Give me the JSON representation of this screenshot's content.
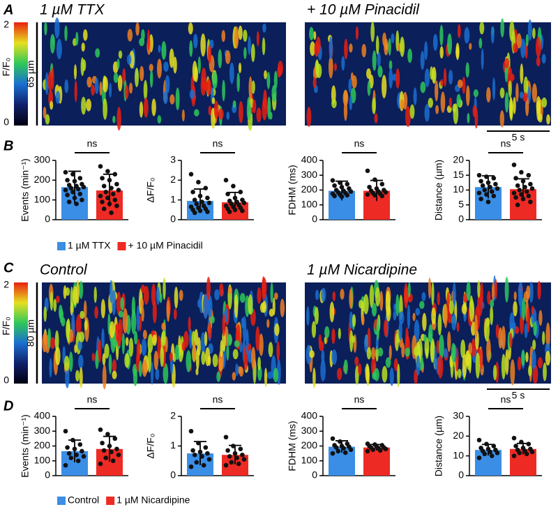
{
  "panel_letters": [
    "A",
    "B",
    "C",
    "D"
  ],
  "kymographs": [
    {
      "titles": [
        "1 µM TTX",
        "+ 10 µM Pinacidil"
      ],
      "scale_space": "65 µm",
      "scale_time": "5 s",
      "colorbar": {
        "label": "F/F₀",
        "ticks": [
          0,
          2
        ]
      }
    },
    {
      "titles": [
        "Control",
        "1 µM Nicardipine"
      ],
      "scale_space": "80 µm",
      "scale_time": "5 s",
      "colorbar": {
        "label": "F/F₀",
        "ticks": [
          0,
          2
        ]
      }
    }
  ],
  "legends": [
    [
      {
        "name": "1 µM TTX",
        "color": "#3a8ee6"
      },
      {
        "name": "+ 10 µM Pinacidil",
        "color": "#ee2a24"
      }
    ],
    [
      {
        "name": "Control",
        "color": "#3a8ee6"
      },
      {
        "name": "1 µM Nicardipine",
        "color": "#ee2a24"
      }
    ]
  ],
  "chart_data": [
    {
      "type": "bar",
      "ylabel": "Events (min⁻¹)",
      "annotation": "ns",
      "colors": [
        "#3a8ee6",
        "#ee2a24"
      ],
      "values": [
        165,
        148
      ],
      "errors": [
        80,
        82
      ],
      "ylim": [
        0,
        300
      ],
      "yticks": [
        0,
        100,
        200,
        300
      ],
      "points": [
        [
          240,
          230,
          210,
          200,
          195,
          180,
          175,
          170,
          165,
          160,
          155,
          150,
          140,
          130,
          125,
          110,
          100,
          90,
          80
        ],
        [
          270,
          245,
          230,
          210,
          200,
          180,
          170,
          160,
          150,
          140,
          130,
          120,
          110,
          100,
          90,
          80,
          70,
          55,
          35
        ]
      ]
    },
    {
      "type": "bar",
      "ylabel": "ΔF/F₀",
      "annotation": "ns",
      "colors": [
        "#3a8ee6",
        "#ee2a24"
      ],
      "values": [
        0.95,
        0.88
      ],
      "errors": [
        0.6,
        0.5
      ],
      "ylim": [
        0,
        3
      ],
      "yticks": [
        0,
        1,
        2,
        3
      ],
      "points": [
        [
          2.3,
          1.9,
          1.6,
          1.4,
          1.2,
          1.1,
          1.0,
          0.9,
          0.85,
          0.8,
          0.7,
          0.65,
          0.6,
          0.55,
          0.5,
          0.45,
          0.4,
          0.35
        ],
        [
          2.0,
          1.7,
          1.4,
          1.3,
          1.1,
          1.0,
          0.95,
          0.9,
          0.85,
          0.8,
          0.75,
          0.7,
          0.65,
          0.6,
          0.55,
          0.5,
          0.45,
          0.4
        ]
      ]
    },
    {
      "type": "bar",
      "ylabel": "FDHM (ms)",
      "annotation": "ns",
      "colors": [
        "#3a8ee6",
        "#ee2a24"
      ],
      "values": [
        195,
        195
      ],
      "errors": [
        65,
        70
      ],
      "ylim": [
        0,
        400
      ],
      "yticks": [
        0,
        100,
        200,
        300,
        400
      ],
      "points": [
        [
          265,
          250,
          240,
          230,
          220,
          210,
          200,
          195,
          190,
          185,
          180,
          175,
          170,
          165,
          160,
          155
        ],
        [
          330,
          270,
          240,
          220,
          210,
          200,
          195,
          190,
          185,
          180,
          175,
          170,
          165,
          160
        ]
      ]
    },
    {
      "type": "bar",
      "ylabel": "Distance (µm)",
      "annotation": "ns",
      "colors": [
        "#3a8ee6",
        "#ee2a24"
      ],
      "values": [
        11,
        10.3
      ],
      "errors": [
        3.8,
        3.5
      ],
      "ylim": [
        0,
        20
      ],
      "yticks": [
        0,
        5,
        10,
        15,
        20
      ],
      "points": [
        [
          15,
          14.5,
          14,
          13,
          12.5,
          12,
          11.5,
          11,
          10.5,
          10,
          9.5,
          9,
          8.5,
          8,
          7,
          6
        ],
        [
          18.5,
          16,
          15,
          14,
          13,
          12,
          11.5,
          11,
          10.5,
          10,
          9.5,
          9,
          8.5,
          8,
          7.5,
          7,
          6,
          5
        ]
      ]
    },
    {
      "type": "bar",
      "ylabel": "Events (min⁻¹)",
      "annotation": "ns",
      "colors": [
        "#3a8ee6",
        "#ee2a24"
      ],
      "values": [
        165,
        180
      ],
      "errors": [
        75,
        85
      ],
      "ylim": [
        0,
        400
      ],
      "yticks": [
        0,
        100,
        200,
        300,
        400
      ],
      "points": [
        [
          300,
          240,
          210,
          190,
          180,
          165,
          150,
          140,
          130,
          120,
          100,
          70
        ],
        [
          310,
          280,
          250,
          220,
          200,
          180,
          170,
          160,
          140,
          120,
          100,
          80
        ]
      ]
    },
    {
      "type": "bar",
      "ylabel": "ΔF/F₀",
      "annotation": "ns",
      "colors": [
        "#3a8ee6",
        "#ee2a24"
      ],
      "values": [
        0.75,
        0.7
      ],
      "errors": [
        0.4,
        0.32
      ],
      "ylim": [
        0,
        2
      ],
      "yticks": [
        0,
        1,
        2
      ],
      "points": [
        [
          1.5,
          1.1,
          0.95,
          0.85,
          0.8,
          0.75,
          0.7,
          0.65,
          0.55,
          0.45,
          0.35,
          0.3
        ],
        [
          1.3,
          1.0,
          0.9,
          0.85,
          0.75,
          0.7,
          0.65,
          0.6,
          0.55,
          0.45,
          0.4,
          0.35
        ]
      ]
    },
    {
      "type": "bar",
      "ylabel": "FDHM (ms)",
      "annotation": "ns",
      "colors": [
        "#3a8ee6",
        "#ee2a24"
      ],
      "values": [
        195,
        190
      ],
      "errors": [
        40,
        20
      ],
      "ylim": [
        0,
        400
      ],
      "yticks": [
        0,
        100,
        200,
        300,
        400
      ],
      "points": [
        [
          250,
          230,
          215,
          205,
          200,
          195,
          190,
          185,
          175,
          165,
          155,
          150
        ],
        [
          215,
          210,
          205,
          200,
          195,
          190,
          188,
          185,
          180,
          175,
          170,
          165
        ]
      ]
    },
    {
      "type": "bar",
      "ylabel": "Distance (µm)",
      "annotation": "ns",
      "colors": [
        "#3a8ee6",
        "#ee2a24"
      ],
      "values": [
        13,
        13.5
      ],
      "errors": [
        2.8,
        2.8
      ],
      "ylim": [
        0,
        30
      ],
      "yticks": [
        0,
        10,
        20,
        30
      ],
      "points": [
        [
          18,
          16,
          15,
          14,
          13.5,
          13,
          12.5,
          12,
          11.5,
          11,
          10,
          9
        ],
        [
          19,
          17,
          16,
          15,
          14,
          13.5,
          13,
          12.5,
          12,
          11.5,
          11,
          10
        ]
      ]
    }
  ]
}
